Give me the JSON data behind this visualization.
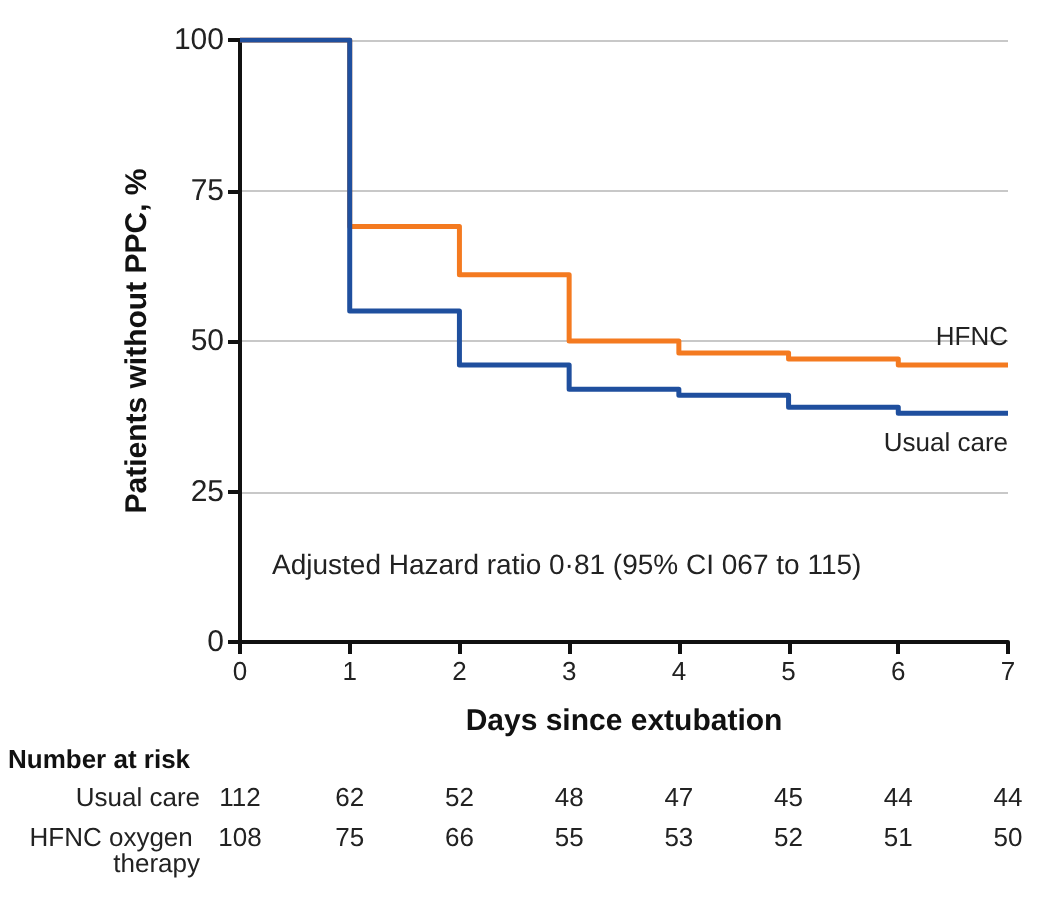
{
  "chart_data": {
    "type": "step",
    "xlabel": "Days since extubation",
    "ylabel": "Patients without PPC, %",
    "x": [
      0,
      1,
      2,
      3,
      4,
      5,
      6,
      7
    ],
    "series": [
      {
        "name": "HFNC",
        "color": "#f47a20",
        "values": [
          100,
          69,
          61,
          50,
          48,
          47,
          46,
          46
        ]
      },
      {
        "name": "Usual care",
        "color": "#1f4f9e",
        "values": [
          100,
          55,
          46,
          42,
          41,
          39,
          38,
          38
        ]
      }
    ],
    "xlim": [
      0,
      7
    ],
    "xticks": [
      0,
      1,
      2,
      3,
      4,
      5,
      6,
      7
    ],
    "ylim": [
      0,
      100
    ],
    "yticks": [
      0,
      25,
      50,
      75,
      100
    ],
    "grid": "y",
    "legend": false,
    "line_style": "solid",
    "annotations": [
      "Adjusted Hazard ratio 0·81 (95% CI 067 to 115)",
      "Number at risk",
      "Usual care",
      "112",
      "62",
      "52",
      "48",
      "47",
      "45",
      "44",
      "44",
      "HFNC oxygen therapy",
      "108",
      "75",
      "66",
      "55",
      "53",
      "52",
      "51",
      "50"
    ]
  }
}
